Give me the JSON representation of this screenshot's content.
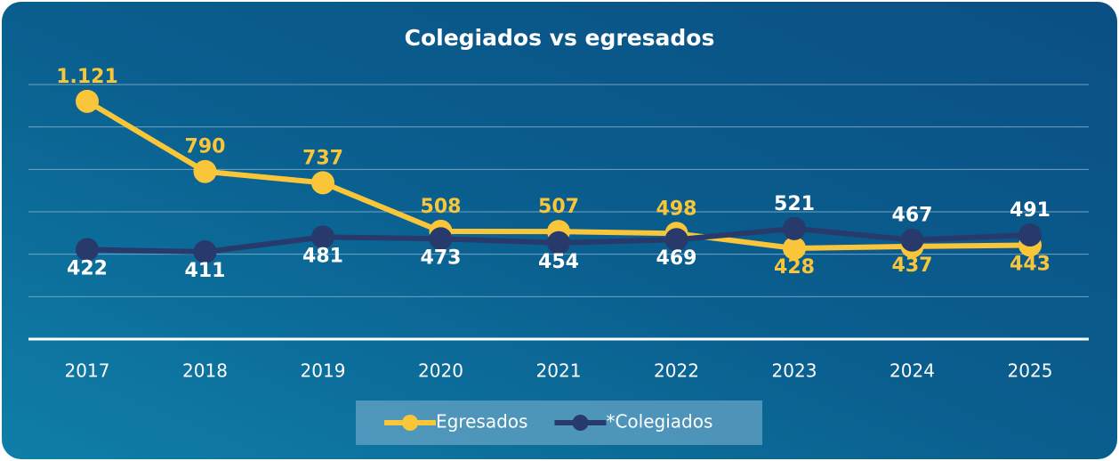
{
  "chart_data": {
    "type": "line",
    "title": "Colegiados vs egresados",
    "categories": [
      "2017",
      "2018",
      "2019",
      "2020",
      "2021",
      "2022",
      "2023",
      "2024",
      "2025"
    ],
    "series": [
      {
        "name": "Egresados",
        "color": "#f9c63a",
        "values": [
          1121,
          790,
          737,
          508,
          507,
          498,
          428,
          437,
          443
        ],
        "value_labels": [
          "1.121",
          "790",
          "737",
          "508",
          "507",
          "498",
          "428",
          "437",
          "443"
        ]
      },
      {
        "name": "*Colegiados",
        "color": "#283a6b",
        "values": [
          422,
          411,
          481,
          473,
          454,
          469,
          521,
          467,
          491
        ]
      }
    ],
    "ylim": [
      0,
      1200
    ],
    "yticks": [
      0,
      200,
      400,
      600,
      800,
      1000,
      1200
    ],
    "grid": true,
    "legend": "bottom"
  }
}
